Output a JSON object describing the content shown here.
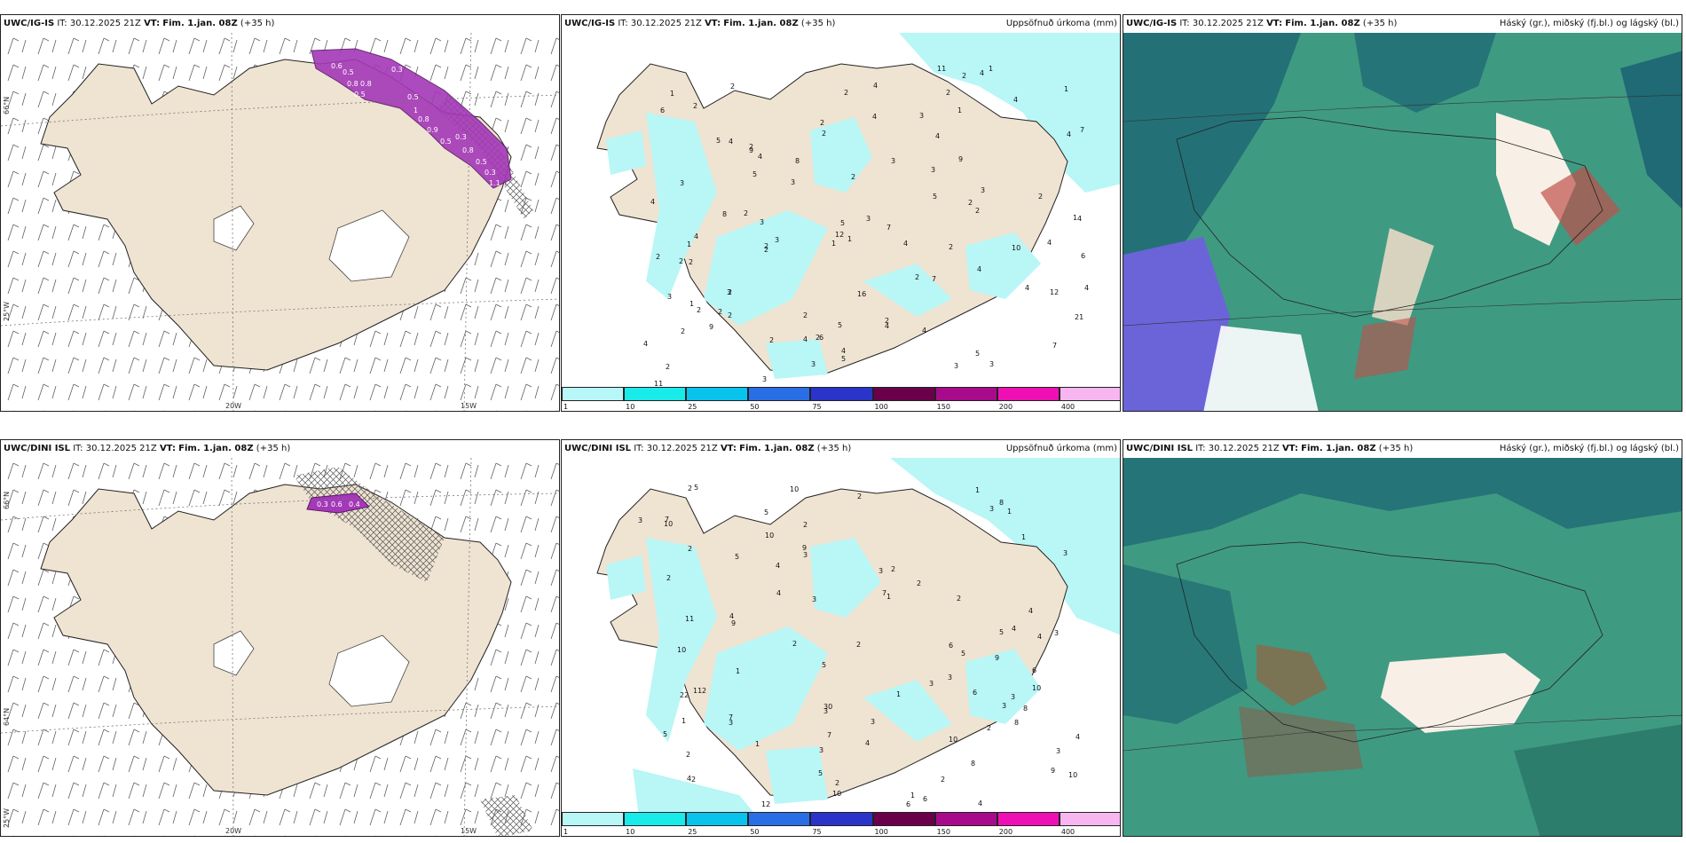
{
  "panels": {
    "ig_wind": {
      "model": "UWC/IG-IS",
      "it_label": "IT:",
      "it": "30.12.2025 21Z",
      "vt_label": "VT:",
      "vt": "Fim. 1.jan. 08Z",
      "lead": "(+35 h)",
      "ice_values": [
        "0.6",
        "0.5",
        "0.3",
        "0.8",
        "0.8",
        "0.5",
        "0.5",
        "1",
        "0.8",
        "0.9",
        "0.5",
        "0.3",
        "0.8",
        "0.5",
        "0.3",
        "1.1"
      ]
    },
    "ig_precip": {
      "model": "UWC/IG-IS",
      "it_label": "IT:",
      "it": "30.12.2025 21Z",
      "vt_label": "VT:",
      "vt": "Fim. 1.jan. 08Z",
      "lead": "(+35 h)",
      "title": "Uppsöfnuð úrkoma (mm)",
      "values": [
        "4",
        "3",
        "2",
        "2",
        "2",
        "2",
        "3",
        "2",
        "4",
        "3",
        "4",
        "2",
        "3",
        "10",
        "4",
        "5",
        "7",
        "2",
        "2",
        "4",
        "2",
        "2",
        "3",
        "5",
        "3",
        "5",
        "4",
        "4",
        "3",
        "2",
        "3",
        "3",
        "4",
        "4",
        "4",
        "4",
        "4",
        "6",
        "11",
        "8",
        "1",
        "3",
        "12",
        "2",
        "8",
        "2",
        "7",
        "4",
        "4",
        "2",
        "1",
        "4",
        "4",
        "3",
        "1",
        "5",
        "4",
        "5",
        "5",
        "3",
        "6",
        "3",
        "2",
        "2",
        "4",
        "2",
        "2",
        "2",
        "2",
        "2",
        "21",
        "4",
        "4",
        "9",
        "11",
        "1",
        "9",
        "9",
        "1",
        "7",
        "2",
        "2",
        "2",
        "2",
        "2",
        "2",
        "1",
        "5",
        "6",
        "4",
        "1",
        "2",
        "1",
        "3",
        "7",
        "2",
        "3",
        "16",
        "12",
        "1",
        "2"
      ]
    },
    "ig_cloud": {
      "model": "UWC/IG-IS",
      "it_label": "IT:",
      "it": "30.12.2025 21Z",
      "vt_label": "VT:",
      "vt": "Fim. 1.jan. 08Z",
      "lead": "(+35 h)",
      "title": "Háský (gr.), miðský (fj.bl.) og lágský (bl.)"
    },
    "dini_wind": {
      "model": "UWC/DINI ISL",
      "it_label": "IT:",
      "it": "30.12.2025 21Z",
      "vt_label": "VT:",
      "vt": "Fim. 1.jan. 08Z",
      "lead": "(+35 h)",
      "ice_values": [
        "0.3",
        "0.6",
        "0.4"
      ]
    },
    "dini_precip": {
      "model": "UWC/DINI ISL",
      "it_label": "IT:",
      "it": "30.12.2025 21Z",
      "vt_label": "VT:",
      "vt": "Fim. 1.jan. 08Z",
      "lead": "(+35 h)",
      "title": "Uppsöfnuð úrkoma (mm)",
      "values": [
        "1",
        "2",
        "2",
        "1",
        "1",
        "2",
        "1",
        "10",
        "5",
        "7",
        "2",
        "2",
        "2",
        "3",
        "3",
        "2",
        "3",
        "8",
        "4",
        "4",
        "3",
        "5",
        "3",
        "3",
        "4",
        "5",
        "4",
        "4",
        "10",
        "10",
        "10",
        "10",
        "3",
        "5",
        "11",
        "2",
        "2",
        "3",
        "4",
        "3",
        "6",
        "6",
        "6",
        "11",
        "3",
        "4",
        "7",
        "5",
        "5",
        "10",
        "4",
        "3",
        "3",
        "8",
        "30",
        "4",
        "9",
        "7",
        "2",
        "3",
        "22",
        "8",
        "4",
        "10",
        "3",
        "3",
        "6",
        "9",
        "9",
        "8",
        "2",
        "2",
        "2",
        "9",
        "10",
        "1",
        "1",
        "5",
        "12",
        "7",
        "6",
        "5",
        "2",
        "2",
        "1",
        "2",
        "1",
        "1",
        "3"
      ]
    },
    "dini_cloud": {
      "model": "UWC/DINI ISL",
      "it_label": "IT:",
      "it": "30.12.2025 21Z",
      "vt_label": "VT:",
      "vt": "Fim. 1.jan. 08Z",
      "lead": "(+35 h)",
      "title": "Háský (gr.), miðský (fj.bl.) og lágský (bl.)"
    }
  },
  "axis_labels": {
    "lat_66": "66°N",
    "lat_64": "64°N",
    "lat_25w": "25°W",
    "lon_20w": "20W",
    "lon_15w": "15W"
  },
  "colorbar": {
    "ticks": [
      "1",
      "10",
      "25",
      "50",
      "75",
      "100",
      "150",
      "200",
      "400"
    ],
    "colors": [
      "#b8f7f7",
      "#19eaea",
      "#08c4ec",
      "#2a6ee6",
      "#2a34c8",
      "#6a004a",
      "#a80a8c",
      "#ee10b4",
      "#f7b6f0"
    ]
  },
  "colors": {
    "land": "#efe3d2",
    "precip_light": "#b9f6f6",
    "ice_purple": "#a438b8",
    "cloud_base": "#3f9a82",
    "cloud_dark": "#1f6a74"
  }
}
